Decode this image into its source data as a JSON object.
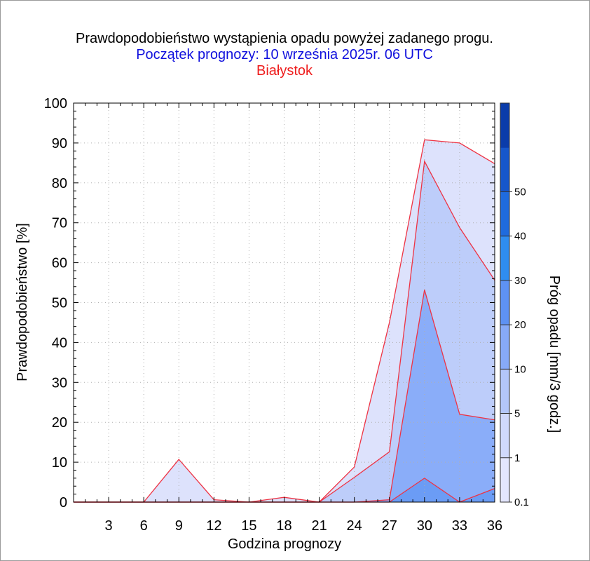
{
  "titles": {
    "line1": "Prawdopodobieństwo wystąpienia opadu powyżej zadanego progu.",
    "line2": "Początek prognozy: 10 września 2025r. 06 UTC",
    "line3": "Białystok"
  },
  "colors": {
    "title1": "#000000",
    "title2": "#1010dd",
    "title3": "#ee1c1c",
    "outline": "#ee3344",
    "grid": "#b0b0b0"
  },
  "chart_data": {
    "type": "area",
    "xlabel": "Godzina prognozy",
    "ylabel": "Prawdopodobieństwo [%]",
    "x": [
      0,
      3,
      6,
      9,
      12,
      15,
      18,
      21,
      24,
      27,
      30,
      33,
      36
    ],
    "xticks": [
      3,
      6,
      9,
      12,
      15,
      18,
      21,
      24,
      27,
      30,
      33,
      36
    ],
    "xlim": [
      0,
      36
    ],
    "ylim": [
      0,
      100
    ],
    "yticks": [
      0,
      10,
      20,
      30,
      40,
      50,
      60,
      70,
      80,
      90,
      100
    ],
    "grid": true,
    "series": [
      {
        "name": "0.1",
        "color": "#dde2fc",
        "values": [
          0,
          0,
          0,
          10.7,
          0.6,
          0,
          1.2,
          0,
          8.8,
          45,
          90.8,
          90,
          84.8
        ]
      },
      {
        "name": "1",
        "color": "#bdcdfa",
        "values": [
          0,
          0,
          0,
          0,
          0,
          0,
          0,
          0,
          6.2,
          12.6,
          85.4,
          68.8,
          55.6
        ]
      },
      {
        "name": "5",
        "color": "#8aadf9",
        "values": [
          0,
          0,
          0,
          0,
          0,
          0,
          0,
          0,
          0,
          0.6,
          53.2,
          22,
          20.6
        ]
      },
      {
        "name": "10",
        "color": "#6b9cf5",
        "values": [
          0,
          0,
          0,
          0,
          0,
          0,
          0,
          0,
          0,
          0,
          6,
          0,
          3.4
        ]
      }
    ],
    "colorbar": {
      "label": "Próg opadu [mm/3 godz.]",
      "ticks": [
        "0.1",
        "1",
        "5",
        "10",
        "20",
        "30",
        "40",
        "50"
      ],
      "colors": [
        "#e3e6fd",
        "#d0d9fb",
        "#b3c6f9",
        "#87aaf7",
        "#5e92f3",
        "#2f8df0",
        "#1f6bdd",
        "#1657cb",
        "#0a3caa"
      ]
    }
  }
}
